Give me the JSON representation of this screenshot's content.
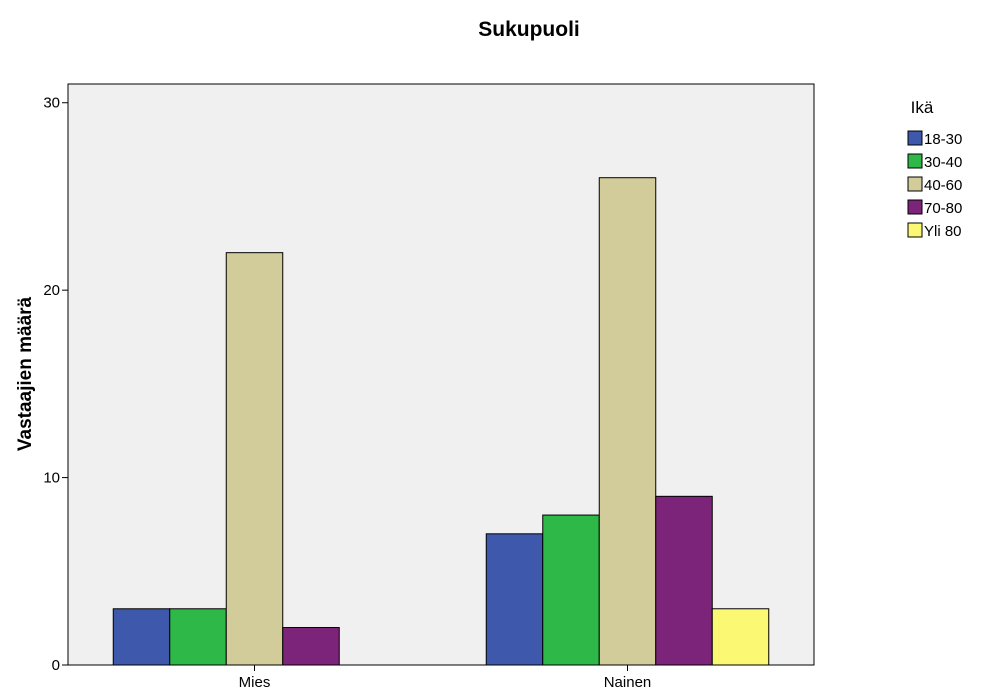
{
  "chart_data": {
    "type": "bar",
    "title": "Sukupuoli",
    "xlabel": "",
    "ylabel": "Vastaajien määrä",
    "ylim": [
      0,
      31
    ],
    "yticks": [
      0,
      10,
      20,
      30
    ],
    "categories": [
      "Mies",
      "Nainen"
    ],
    "legend_title": "Ikä",
    "legend_position": "right",
    "plot_background": "#f0f0f0",
    "series": [
      {
        "name": "18-30",
        "color": "#3e58ac",
        "values": [
          3,
          7
        ]
      },
      {
        "name": "30-40",
        "color": "#2eb848",
        "values": [
          3,
          8
        ]
      },
      {
        "name": "40-60",
        "color": "#d2cc9a",
        "values": [
          22,
          26
        ]
      },
      {
        "name": "70-80",
        "color": "#7c2479",
        "values": [
          2,
          9
        ]
      },
      {
        "name": "Yli 80",
        "color": "#fbf873",
        "values": [
          0,
          3
        ]
      }
    ]
  }
}
